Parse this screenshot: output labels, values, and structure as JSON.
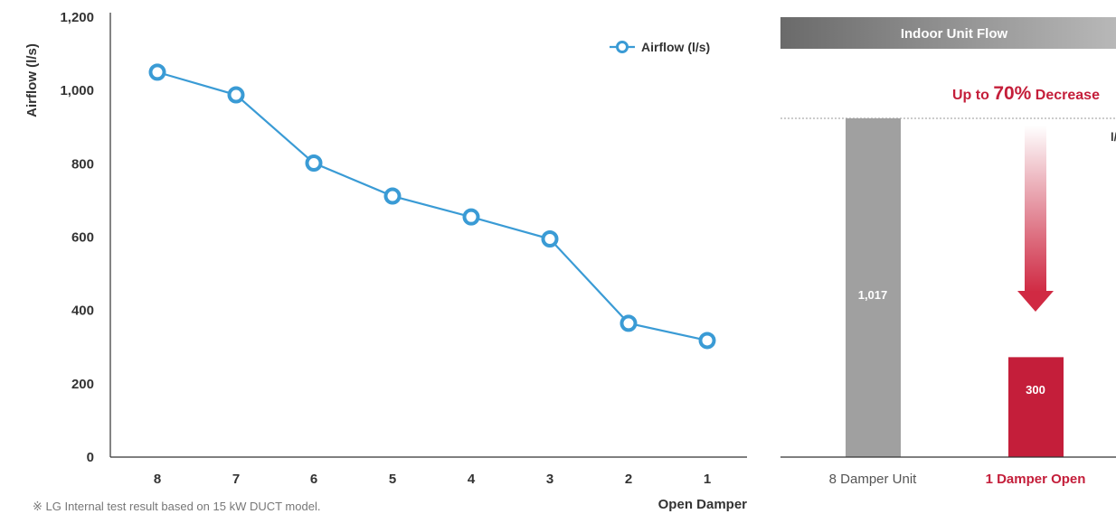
{
  "footnote": "※ LG Internal test result based on 15 kW DUCT model.",
  "colors": {
    "line": "#3a9bd5",
    "bar_gray": "#a0a0a0",
    "bar_red": "#c41e3a",
    "accent_red": "#c41e3a",
    "header_dark": "#6a6a6a",
    "header_light": "#b8b8b8"
  },
  "chart_data": [
    {
      "type": "line",
      "ylabel": "Airflow (l/s)",
      "xlabel": "Open Damper",
      "categories": [
        "8",
        "7",
        "6",
        "5",
        "4",
        "3",
        "2",
        "1"
      ],
      "series": [
        {
          "name": "Airflow (l/s)",
          "values": [
            1050,
            988,
            802,
            712,
            655,
            595,
            365,
            318
          ]
        }
      ],
      "ylim": [
        0,
        1200
      ],
      "yticks": [
        "0",
        "200",
        "400",
        "600",
        "800",
        "1,000",
        "1,200"
      ],
      "legend": "top-right",
      "grid": false
    },
    {
      "type": "bar",
      "title": "Indoor Unit Flow",
      "annotation_prefix": "Up to ",
      "annotation_highlight": "70%",
      "annotation_suffix": " Decrease",
      "unit_label": "l/",
      "categories": [
        "8 Damper Unit",
        "1 Damper Open"
      ],
      "values": [
        1017,
        300
      ],
      "value_labels": [
        "1,017",
        "300"
      ]
    }
  ]
}
